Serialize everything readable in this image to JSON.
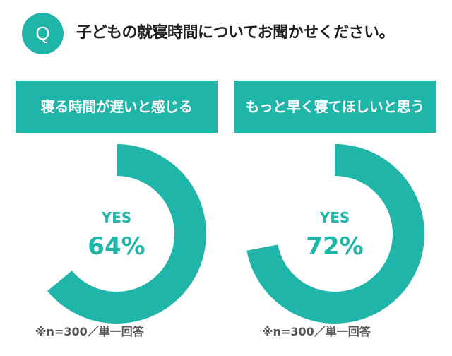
{
  "question": {
    "badge": "Q",
    "text": "子どもの就寝時間についてお聞かせください。"
  },
  "colors": {
    "accent": "#1fb5a8",
    "text": "#202020",
    "footnote": "#555555"
  },
  "chart_data": [
    {
      "type": "pie",
      "title": "寝る時間が遅いと感じる",
      "categories": [
        "YES"
      ],
      "values": [
        64
      ],
      "unit": "%",
      "center_label": "YES",
      "center_value": "64%",
      "note": "※n=300／単一回答"
    },
    {
      "type": "pie",
      "title": "もっと早く寝てほしいと思う",
      "categories": [
        "YES"
      ],
      "values": [
        72
      ],
      "unit": "%",
      "center_label": "YES",
      "center_value": "72%",
      "note": "※n=300／単一回答"
    }
  ]
}
